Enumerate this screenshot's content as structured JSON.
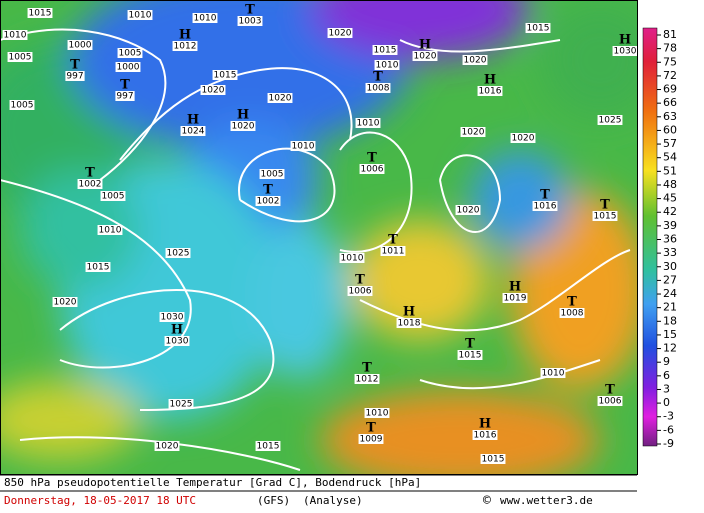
{
  "map": {
    "isobar_labels": [
      1015,
      1010,
      1010,
      1010,
      1000,
      1005,
      1020,
      1015,
      1020,
      1015,
      1005,
      1000,
      1015,
      1020,
      1020,
      1010,
      1005,
      1025,
      1010,
      1020,
      1020,
      1010,
      1005,
      1005,
      1020,
      1010,
      1010,
      1025,
      1015,
      1020,
      1030,
      1010,
      1025,
      1010,
      1020,
      1015,
      1015
    ],
    "centers": [
      {
        "symbol": "T",
        "pressure": 1003
      },
      {
        "symbol": "H",
        "pressure": 1012
      },
      {
        "symbol": "H",
        "pressure": 1020
      },
      {
        "symbol": "H",
        "pressure": 1030
      },
      {
        "symbol": "T",
        "pressure": 997
      },
      {
        "symbol": "T",
        "pressure": 997
      },
      {
        "symbol": "T",
        "pressure": 1008
      },
      {
        "symbol": "H",
        "pressure": 1016
      },
      {
        "symbol": "H",
        "pressure": 1024
      },
      {
        "symbol": "H",
        "pressure": 1020
      },
      {
        "symbol": "T",
        "pressure": 1006
      },
      {
        "symbol": "T",
        "pressure": 1002
      },
      {
        "symbol": "T",
        "pressure": 1002
      },
      {
        "symbol": "T",
        "pressure": 1016
      },
      {
        "symbol": "T",
        "pressure": 1015
      },
      {
        "symbol": "T",
        "pressure": 1011
      },
      {
        "symbol": "T",
        "pressure": 1006
      },
      {
        "symbol": "H",
        "pressure": 1019
      },
      {
        "symbol": "H",
        "pressure": 1030
      },
      {
        "symbol": "H",
        "pressure": 1018
      },
      {
        "symbol": "T",
        "pressure": 1008
      },
      {
        "symbol": "T",
        "pressure": 1015
      },
      {
        "symbol": "T",
        "pressure": 1012
      },
      {
        "symbol": "T",
        "pressure": 1006
      },
      {
        "symbol": "T",
        "pressure": 1009
      },
      {
        "symbol": "H",
        "pressure": 1016
      }
    ],
    "color_scale": [
      81,
      78,
      75,
      72,
      69,
      66,
      63,
      60,
      57,
      54,
      51,
      48,
      45,
      42,
      39,
      36,
      33,
      30,
      27,
      24,
      21,
      18,
      15,
      12,
      9,
      6,
      3,
      0,
      -3,
      -6,
      -9
    ]
  },
  "footer": {
    "title": "850 hPa pseudopotentielle Temperatur [Grad C], Bodendruck [hPa]",
    "date": "Donnerstag, 18-05-2017  18 UTC",
    "model": "(GFS)",
    "run": "(Analyse)",
    "copyright": "©",
    "site": "www.wetter3.de"
  }
}
